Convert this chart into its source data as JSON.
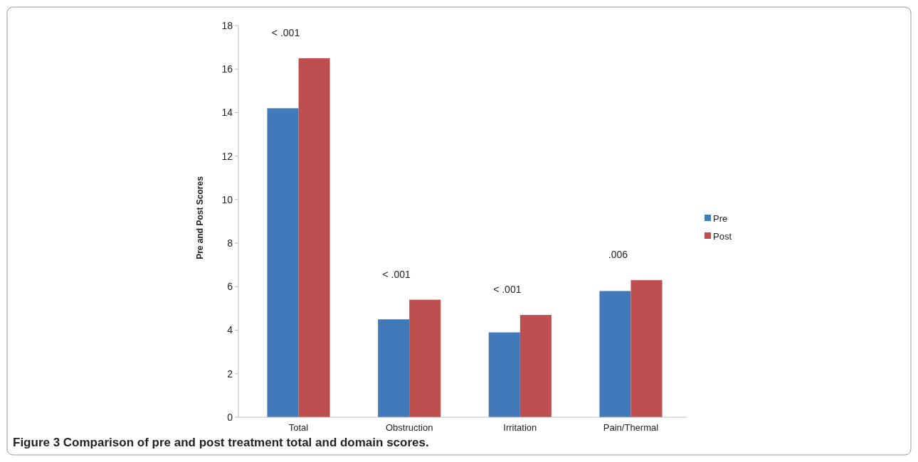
{
  "chart_data": {
    "type": "bar",
    "title": "Figure 3 Comparison of pre and post treatment total and domain scores.",
    "ylabel": "Pre and Post Scores",
    "categories": [
      "Total",
      "Obstruction",
      "Irritation",
      "Pain/Thermal"
    ],
    "series": [
      {
        "name": "Pre",
        "color": "#4279b9",
        "values": [
          14.2,
          4.5,
          3.9,
          5.8
        ]
      },
      {
        "name": "Post",
        "color": "#bd4f4f",
        "values": [
          16.5,
          5.4,
          4.7,
          6.3
        ]
      }
    ],
    "ylim": [
      0,
      18
    ],
    "yticks": [
      0,
      2,
      4,
      6,
      8,
      10,
      12,
      14,
      16,
      18
    ],
    "grid": false,
    "legend": "right",
    "annotations": [
      "< .001",
      "< .001",
      "< .001",
      ".006"
    ]
  }
}
